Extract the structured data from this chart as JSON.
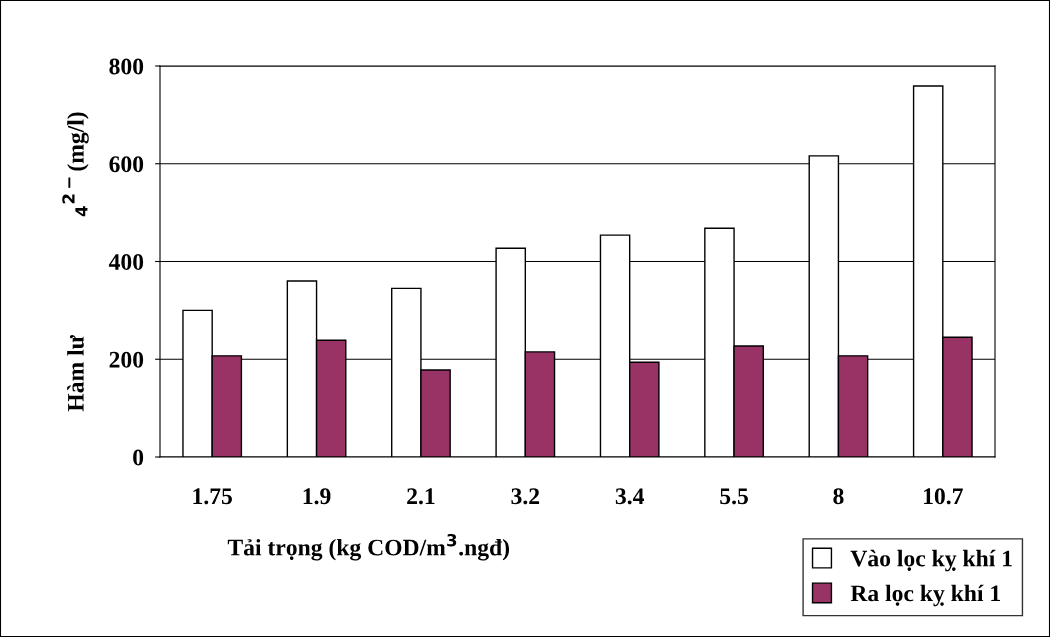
{
  "chart_data": {
    "type": "bar",
    "xlabel": "Tải trọng (kg COD/m$^{3}$.ngđ)",
    "ylabel": "Hàm lư                    $_{4}$$^{2−}$(mg/l)",
    "categories": [
      "1.75",
      "1.9",
      "2.1",
      "3.2",
      "3.4",
      "5.5",
      "8",
      "10.7"
    ],
    "series": [
      {
        "name": "Vào lọc kỵ khí 1",
        "color": "#ffffff",
        "values": [
          300,
          360,
          345,
          427,
          454,
          468,
          616,
          759
        ]
      },
      {
        "name": "Ra lọc kỵ khí 1",
        "color": "#993366",
        "values": [
          207,
          239,
          178,
          215,
          194,
          227,
          207,
          245
        ]
      }
    ],
    "ylim": [
      0,
      800
    ],
    "yticks": [
      0,
      200,
      400,
      600,
      800
    ],
    "grid": "y",
    "legend": "bottom right"
  }
}
